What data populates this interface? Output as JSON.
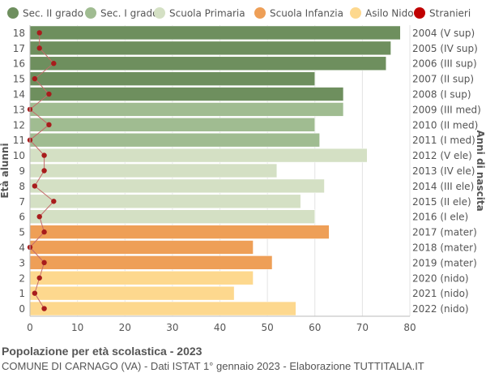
{
  "chart_data": {
    "type": "bar",
    "orientation": "horizontal",
    "title": "Popolazione per età scolastica - 2023",
    "subtitle": "COMUNE DI CARNAGO (VA) - Dati ISTAT 1° gennaio 2023 - Elaborazione TUTTITALIA.IT",
    "ylabel_left": "Età alunni",
    "ylabel_right": "Anni di nascita",
    "xlim": [
      0,
      80
    ],
    "xticks": [
      0,
      10,
      20,
      30,
      40,
      50,
      60,
      70,
      80
    ],
    "grid": true,
    "legend_position": "top",
    "legend": [
      {
        "label": "Sec. II grado",
        "color": "#6e8f5e"
      },
      {
        "label": "Sec. I grado",
        "color": "#a0bc91"
      },
      {
        "label": "Scuola Primaria",
        "color": "#d4e0c4"
      },
      {
        "label": "Scuola Infanzia",
        "color": "#ee9f57"
      },
      {
        "label": "Asilo Nido",
        "color": "#fdd88e"
      },
      {
        "label": "Stranieri",
        "color": "#c00000"
      }
    ],
    "ages": [
      18,
      17,
      16,
      15,
      14,
      13,
      12,
      11,
      10,
      9,
      8,
      7,
      6,
      5,
      4,
      3,
      2,
      1,
      0
    ],
    "birth_years": [
      "2004 (V sup)",
      "2005 (IV sup)",
      "2006 (III sup)",
      "2007 (II sup)",
      "2008 (I sup)",
      "2009 (III med)",
      "2010 (II med)",
      "2011 (I med)",
      "2012 (V ele)",
      "2013 (IV ele)",
      "2014 (III ele)",
      "2015 (II ele)",
      "2016 (I ele)",
      "2017 (mater)",
      "2018 (mater)",
      "2019 (mater)",
      "2020 (nido)",
      "2021 (nido)",
      "2022 (nido)"
    ],
    "values": [
      78,
      76,
      75,
      60,
      66,
      66,
      60,
      61,
      71,
      52,
      62,
      57,
      60,
      63,
      47,
      51,
      47,
      43,
      56
    ],
    "groups": [
      0,
      0,
      0,
      0,
      0,
      1,
      1,
      1,
      2,
      2,
      2,
      2,
      2,
      3,
      3,
      3,
      4,
      4,
      4
    ],
    "stranieri": [
      2,
      2,
      5,
      1,
      4,
      0,
      4,
      0,
      3,
      3,
      1,
      5,
      2,
      3,
      0,
      3,
      2,
      1,
      3
    ]
  }
}
